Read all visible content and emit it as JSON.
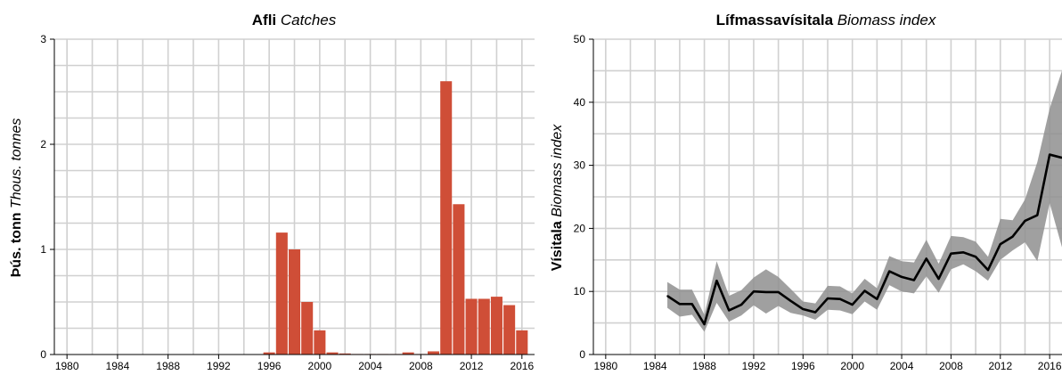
{
  "chart_data": [
    {
      "type": "bar",
      "title": {
        "bold": "Afli",
        "italic": "Catches"
      },
      "ylabel": {
        "bold": "Þús. tonn",
        "italic": "Thous. tonnes"
      },
      "xlabel": "",
      "xlim": [
        1979,
        2017
      ],
      "ylim": [
        0,
        3
      ],
      "x_ticks": [
        "1980",
        "1984",
        "1988",
        "1992",
        "1996",
        "2000",
        "2004",
        "2008",
        "2012",
        "2016"
      ],
      "y_ticks": [
        "0",
        "1",
        "2",
        "3"
      ],
      "grid": true,
      "colors": {
        "bar": "#cf4e37",
        "grid": "#d0d0d0"
      },
      "x": [
        1996,
        1997,
        1998,
        1999,
        2000,
        2001,
        2002,
        2003,
        2004,
        2005,
        2006,
        2007,
        2008,
        2009,
        2010,
        2011,
        2012,
        2013,
        2014,
        2015,
        2016
      ],
      "values": [
        0.02,
        1.16,
        1.0,
        0.5,
        0.23,
        0.02,
        0.01,
        0.005,
        0.005,
        0.005,
        0.005,
        0.02,
        0.005,
        0.03,
        2.6,
        1.43,
        0.53,
        0.53,
        0.55,
        0.47,
        0.23
      ]
    },
    {
      "type": "line",
      "title": {
        "bold": "Lífmassavísitala",
        "italic": "Biomass index"
      },
      "ylabel": {
        "bold": "Vísitala",
        "italic": "Biomass index"
      },
      "xlabel": "",
      "xlim": [
        1979,
        2017
      ],
      "ylim": [
        0,
        50
      ],
      "x_ticks": [
        "1980",
        "1984",
        "1988",
        "1992",
        "1996",
        "2000",
        "2004",
        "2008",
        "2012",
        "2016"
      ],
      "y_ticks": [
        "0",
        "10",
        "20",
        "30",
        "40",
        "50"
      ],
      "grid": true,
      "colors": {
        "line": "#000000",
        "band": "#8f8f8f",
        "grid": "#d0d0d0"
      },
      "x": [
        1985,
        1986,
        1987,
        1988,
        1989,
        1990,
        1991,
        1992,
        1993,
        1994,
        1995,
        1996,
        1997,
        1998,
        1999,
        2000,
        2001,
        2002,
        2003,
        2004,
        2005,
        2006,
        2007,
        2008,
        2009,
        2010,
        2011,
        2012,
        2013,
        2014,
        2015,
        2016,
        2017
      ],
      "values": [
        9.3,
        8.0,
        8.0,
        4.8,
        11.7,
        7.0,
        7.9,
        10.0,
        9.9,
        9.9,
        8.5,
        7.2,
        6.7,
        8.9,
        8.8,
        7.9,
        10.1,
        8.8,
        13.2,
        12.3,
        11.8,
        15.2,
        12.0,
        16.0,
        16.2,
        15.5,
        13.4,
        17.5,
        18.7,
        21.2,
        22.1,
        31.7,
        31.2
      ],
      "lower": [
        7.4,
        6.0,
        6.3,
        3.6,
        8.2,
        5.2,
        6.2,
        7.8,
        6.5,
        7.7,
        6.6,
        6.2,
        5.5,
        7.1,
        7.0,
        6.4,
        8.4,
        7.1,
        11.0,
        10.0,
        9.7,
        12.4,
        9.8,
        13.5,
        14.3,
        13.2,
        11.7,
        15.0,
        16.5,
        17.8,
        14.8,
        24.0,
        17.0
      ],
      "upper": [
        11.5,
        10.3,
        10.3,
        6.3,
        14.8,
        9.3,
        10.2,
        12.2,
        13.5,
        12.3,
        10.4,
        8.4,
        8.1,
        10.9,
        10.8,
        9.7,
        12.0,
        10.5,
        15.6,
        14.8,
        14.6,
        18.2,
        14.4,
        18.8,
        18.6,
        17.9,
        15.5,
        21.5,
        21.3,
        24.6,
        30.5,
        39.0,
        45.0
      ]
    }
  ]
}
